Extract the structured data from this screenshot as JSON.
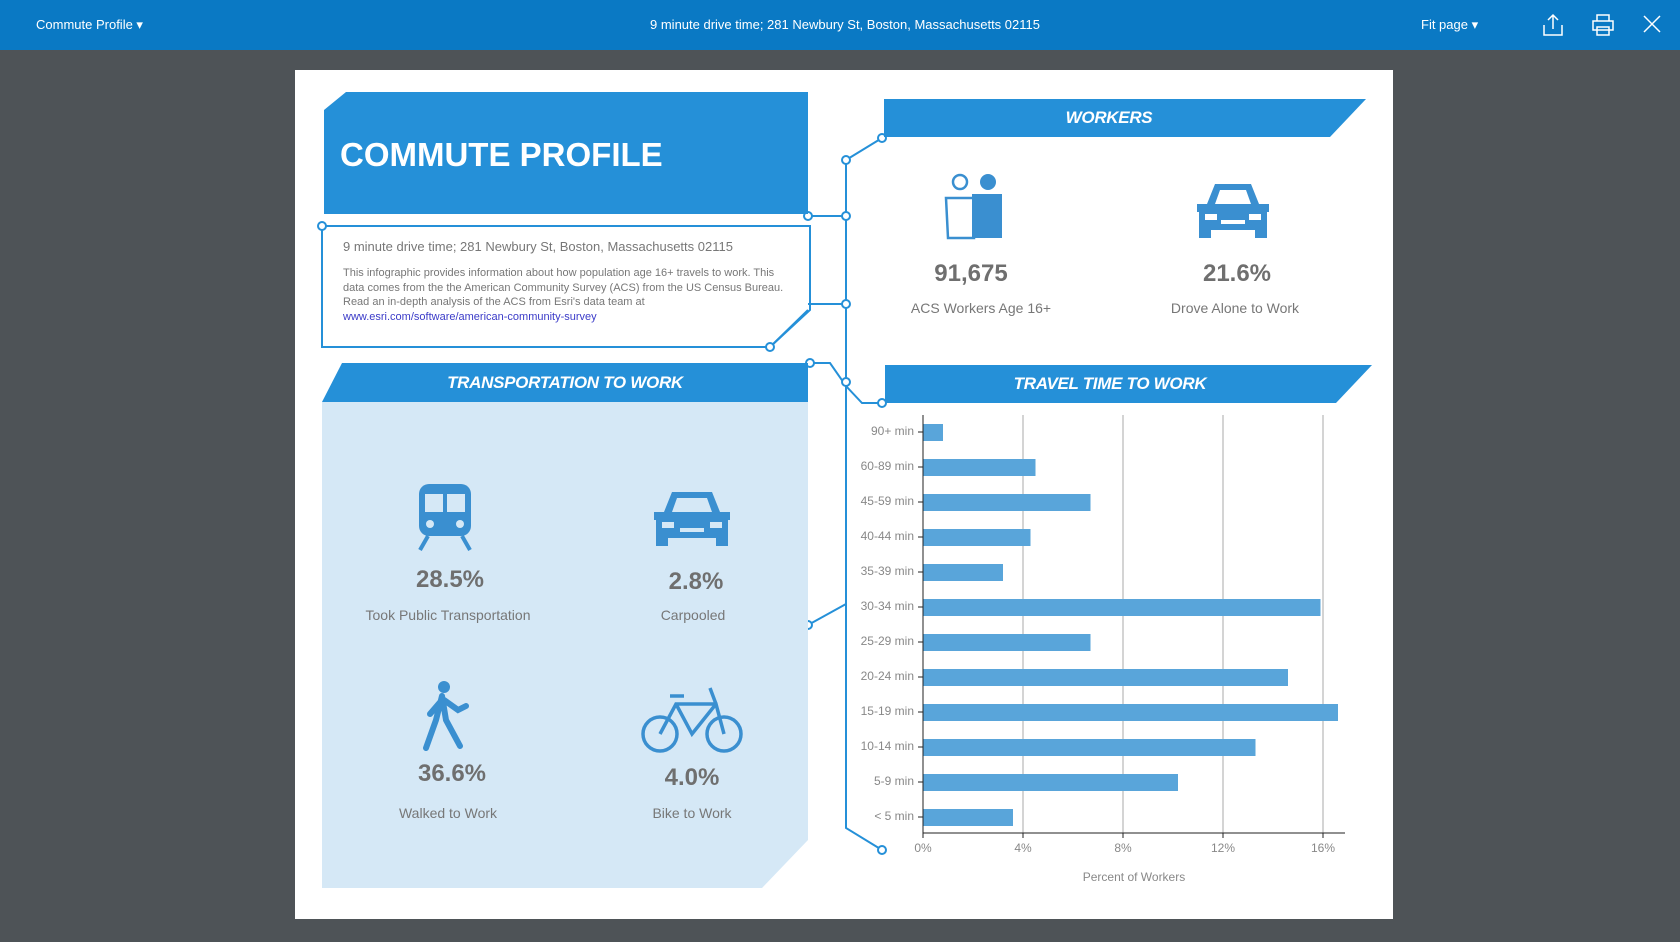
{
  "topbar": {
    "profile_menu": "Commute Profile",
    "center_title": "9 minute drive time; 281 Newbury St, Boston, Massachusetts 02115",
    "zoom_select": "Fit page",
    "icons": [
      "export-icon",
      "print-icon",
      "close-icon"
    ]
  },
  "title": "COMMUTE PROFILE",
  "description": {
    "location": "9 minute drive time; 281 Newbury St, Boston, Massachusetts 02115",
    "body": "This infographic provides information about how population age 16+ travels to work. This data comes from the the American Community Survey (ACS) from the US Census Bureau. Read an in-depth analysis of the ACS from Esri's data team at ",
    "link": "www.esri.com/software/american-community-survey"
  },
  "transportation": {
    "header": "TRANSPORTATION TO WORK",
    "items": [
      {
        "icon": "bus-icon",
        "value": "28.5%",
        "label": "Took Public Transportation"
      },
      {
        "icon": "car-icon",
        "value": "2.8%",
        "label": "Carpooled"
      },
      {
        "icon": "walking-person-icon",
        "value": "36.6%",
        "label": "Walked to Work"
      },
      {
        "icon": "bicycle-icon",
        "value": "4.0%",
        "label": "Bike to Work"
      }
    ]
  },
  "workers": {
    "header": "WORKERS",
    "items": [
      {
        "icon": "people-icon",
        "value": "91,675",
        "label": "ACS Workers Age 16+"
      },
      {
        "icon": "car-icon",
        "value": "21.6%",
        "label": "Drove Alone to Work"
      }
    ]
  },
  "travel_header": "TRAVEL TIME TO WORK",
  "colors": {
    "accent": "#2590d8",
    "bar": "#59a5da",
    "panel": "#d5e8f6",
    "topbar": "#0a79c4"
  },
  "chart_data": {
    "type": "bar",
    "orientation": "horizontal",
    "categories": [
      "90+ min",
      "60-89 min",
      "45-59 min",
      "40-44 min",
      "35-39 min",
      "30-34 min",
      "25-29 min",
      "20-24 min",
      "15-19 min",
      "10-14 min",
      "5-9 min",
      "< 5 min"
    ],
    "values": [
      0.8,
      4.5,
      6.7,
      4.3,
      3.2,
      15.9,
      6.7,
      14.6,
      16.6,
      13.3,
      10.2,
      3.6
    ],
    "xticks": [
      "0%",
      "4%",
      "8%",
      "12%",
      "16%"
    ],
    "xlim": [
      0,
      16.8
    ],
    "xlabel": "Percent of Workers",
    "grid": true
  }
}
